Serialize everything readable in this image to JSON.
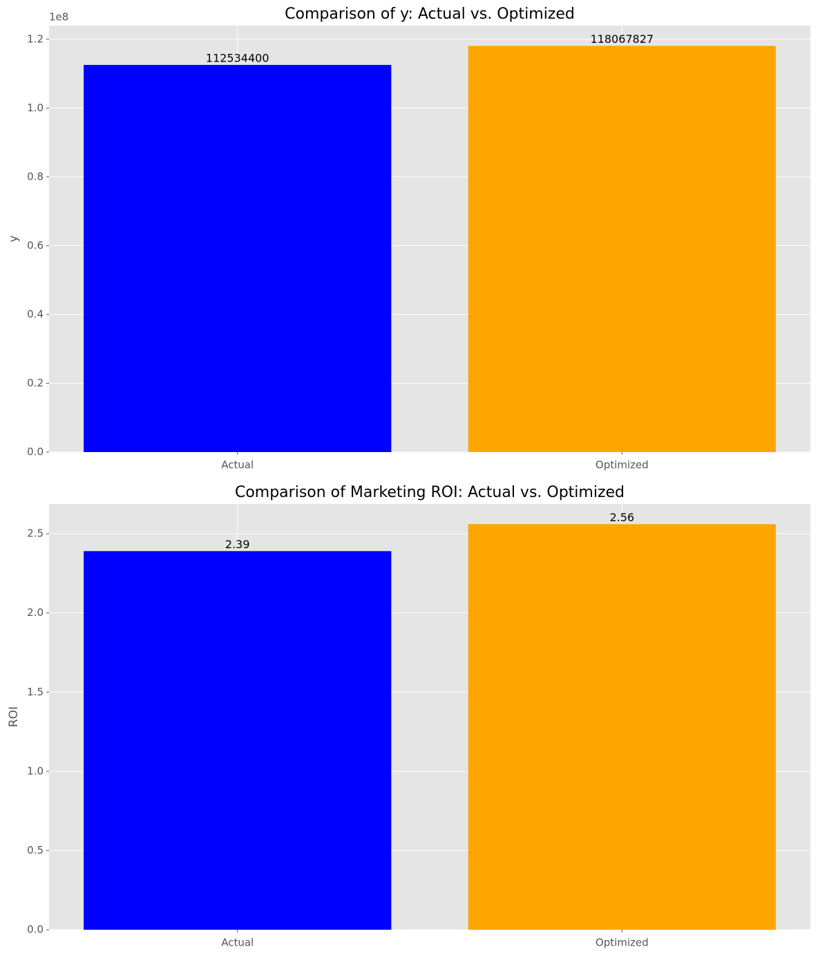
{
  "chart_data": [
    {
      "type": "bar",
      "title": "Comparison of y: Actual vs. Optimized",
      "ylabel": "y",
      "y_offset_label": "1e8",
      "categories": [
        "Actual",
        "Optimized"
      ],
      "values": [
        112534400,
        118067827
      ],
      "colors": [
        "#0000ff",
        "#ffa500"
      ],
      "ylim": [
        0,
        123971218
      ],
      "yticks": [
        {
          "value": 0,
          "label": "0.0"
        },
        {
          "value": 20000000,
          "label": "0.2"
        },
        {
          "value": 40000000,
          "label": "0.4"
        },
        {
          "value": 60000000,
          "label": "0.6"
        },
        {
          "value": 80000000,
          "label": "0.8"
        },
        {
          "value": 100000000,
          "label": "1.0"
        },
        {
          "value": 120000000,
          "label": "1.2"
        }
      ],
      "grid": true
    },
    {
      "type": "bar",
      "title": "Comparison of Marketing ROI: Actual vs. Optimized",
      "ylabel": "ROI",
      "categories": [
        "Actual",
        "Optimized"
      ],
      "values": [
        2.39,
        2.56
      ],
      "colors": [
        "#0000ff",
        "#ffa500"
      ],
      "ylim": [
        0,
        2.688
      ],
      "yticks": [
        {
          "value": 0,
          "label": "0.0"
        },
        0.5,
        {
          "value": 1,
          "label": "1.0"
        },
        1.5,
        {
          "value": 2,
          "label": "2.0"
        },
        2.5
      ],
      "grid": true
    }
  ]
}
